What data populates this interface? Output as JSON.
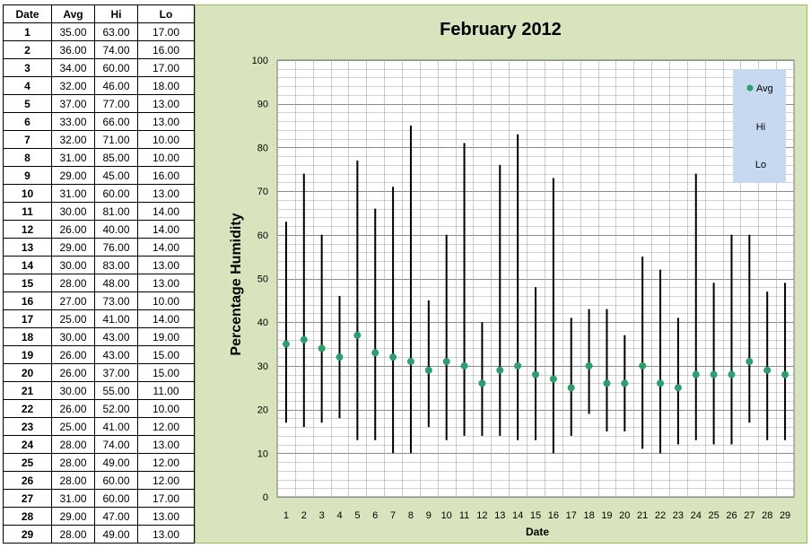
{
  "table": {
    "headers": [
      "Date",
      "Avg",
      "Hi",
      "Lo"
    ],
    "rows": [
      [
        "1",
        "35.00",
        "63.00",
        "17.00"
      ],
      [
        "2",
        "36.00",
        "74.00",
        "16.00"
      ],
      [
        "3",
        "34.00",
        "60.00",
        "17.00"
      ],
      [
        "4",
        "32.00",
        "46.00",
        "18.00"
      ],
      [
        "5",
        "37.00",
        "77.00",
        "13.00"
      ],
      [
        "6",
        "33.00",
        "66.00",
        "13.00"
      ],
      [
        "7",
        "32.00",
        "71.00",
        "10.00"
      ],
      [
        "8",
        "31.00",
        "85.00",
        "10.00"
      ],
      [
        "9",
        "29.00",
        "45.00",
        "16.00"
      ],
      [
        "10",
        "31.00",
        "60.00",
        "13.00"
      ],
      [
        "11",
        "30.00",
        "81.00",
        "14.00"
      ],
      [
        "12",
        "26.00",
        "40.00",
        "14.00"
      ],
      [
        "13",
        "29.00",
        "76.00",
        "14.00"
      ],
      [
        "14",
        "30.00",
        "83.00",
        "13.00"
      ],
      [
        "15",
        "28.00",
        "48.00",
        "13.00"
      ],
      [
        "16",
        "27.00",
        "73.00",
        "10.00"
      ],
      [
        "17",
        "25.00",
        "41.00",
        "14.00"
      ],
      [
        "18",
        "30.00",
        "43.00",
        "19.00"
      ],
      [
        "19",
        "26.00",
        "43.00",
        "15.00"
      ],
      [
        "20",
        "26.00",
        "37.00",
        "15.00"
      ],
      [
        "21",
        "30.00",
        "55.00",
        "11.00"
      ],
      [
        "22",
        "26.00",
        "52.00",
        "10.00"
      ],
      [
        "23",
        "25.00",
        "41.00",
        "12.00"
      ],
      [
        "24",
        "28.00",
        "74.00",
        "13.00"
      ],
      [
        "25",
        "28.00",
        "49.00",
        "12.00"
      ],
      [
        "26",
        "28.00",
        "60.00",
        "12.00"
      ],
      [
        "27",
        "31.00",
        "60.00",
        "17.00"
      ],
      [
        "28",
        "29.00",
        "47.00",
        "13.00"
      ],
      [
        "29",
        "28.00",
        "49.00",
        "13.00"
      ]
    ]
  },
  "chart_data": {
    "type": "scatter",
    "title": "February 2012",
    "xlabel": "Date",
    "ylabel": "Percentage Humidity",
    "x": [
      1,
      2,
      3,
      4,
      5,
      6,
      7,
      8,
      9,
      10,
      11,
      12,
      13,
      14,
      15,
      16,
      17,
      18,
      19,
      20,
      21,
      22,
      23,
      24,
      25,
      26,
      27,
      28,
      29
    ],
    "series": [
      {
        "name": "Avg",
        "values": [
          35,
          36,
          34,
          32,
          37,
          33,
          32,
          31,
          29,
          31,
          30,
          26,
          29,
          30,
          28,
          27,
          25,
          30,
          26,
          26,
          30,
          26,
          25,
          28,
          28,
          28,
          31,
          29,
          28
        ]
      },
      {
        "name": "Hi",
        "values": [
          63,
          74,
          60,
          46,
          77,
          66,
          71,
          85,
          45,
          60,
          81,
          40,
          76,
          83,
          48,
          73,
          41,
          43,
          43,
          37,
          55,
          52,
          41,
          74,
          49,
          60,
          60,
          47,
          49
        ]
      },
      {
        "name": "Lo",
        "values": [
          17,
          16,
          17,
          18,
          13,
          13,
          10,
          10,
          16,
          13,
          14,
          14,
          14,
          13,
          13,
          10,
          14,
          19,
          15,
          15,
          11,
          10,
          12,
          13,
          12,
          12,
          17,
          13,
          13
        ]
      }
    ],
    "ylim": [
      0,
      100
    ],
    "yticks": [
      0,
      10,
      20,
      30,
      40,
      50,
      60,
      70,
      80,
      90,
      100
    ],
    "grid": true,
    "legend_position": "top-right",
    "legend": [
      "Avg",
      "Hi",
      "Lo"
    ],
    "colors": {
      "avg_marker": "#2e9e6e",
      "hi_lo_line": "#000000",
      "panel_background": "#d7e4bd",
      "plot_background": "#ffffff",
      "legend_background": "#c6d9f1",
      "gridline": "#a6a6a6"
    }
  }
}
